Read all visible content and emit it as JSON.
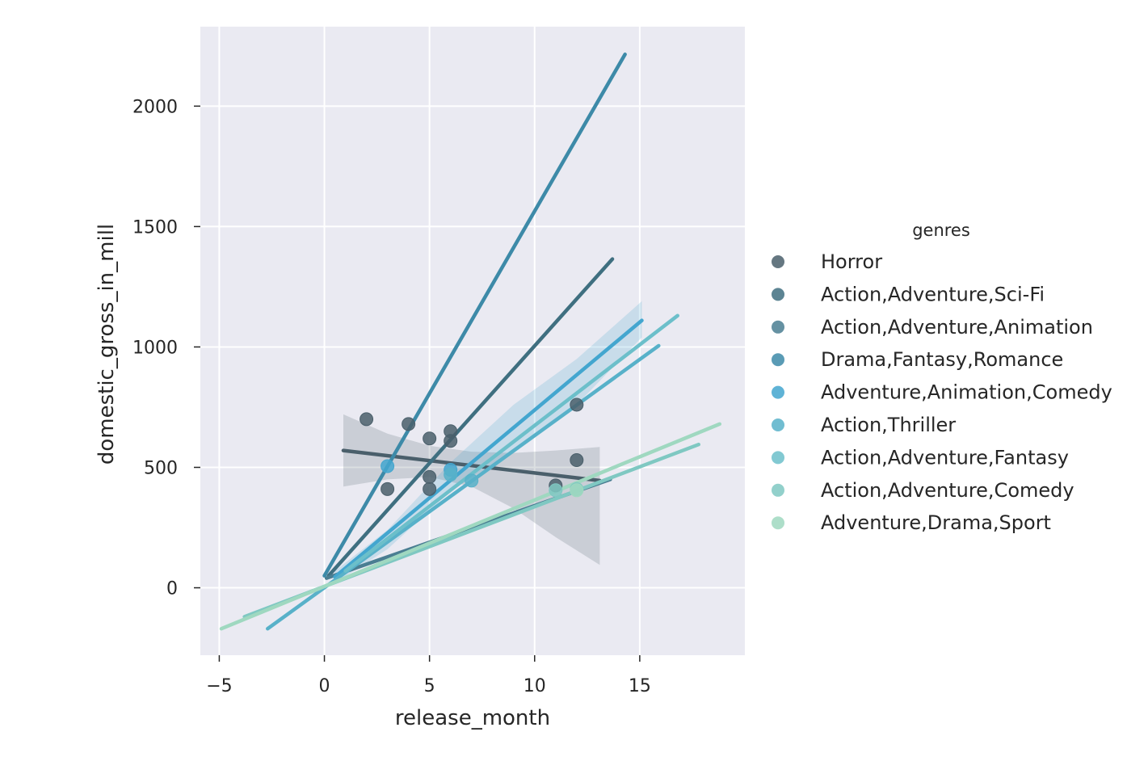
{
  "chart_data": {
    "type": "scatter",
    "title": "",
    "xlabel": "release_month",
    "ylabel": "domestic_gross_in_mill",
    "xlim": [
      -5.9,
      20
    ],
    "ylim": [
      -280,
      2330
    ],
    "xticks": [
      -5,
      0,
      5,
      10,
      15
    ],
    "xtick_labels": [
      "−5",
      "0",
      "5",
      "10",
      "15"
    ],
    "yticks": [
      0,
      500,
      1000,
      1500,
      2000
    ],
    "ytick_labels": [
      "0",
      "500",
      "1000",
      "1500",
      "2000"
    ],
    "grid": true,
    "legend": {
      "title": "genres",
      "placement": "right"
    },
    "series": [
      {
        "name": "Horror",
        "color": "#4a5f6b",
        "points": [
          [
            2,
            700
          ],
          [
            3,
            410
          ],
          [
            4,
            680
          ],
          [
            5,
            620
          ],
          [
            5,
            460
          ],
          [
            5,
            410
          ],
          [
            6,
            650
          ],
          [
            6,
            610
          ],
          [
            11,
            425
          ],
          [
            12,
            760
          ],
          [
            12,
            530
          ]
        ],
        "fit": {
          "x": [
            0.9,
            13.1
          ],
          "y": [
            570,
            445
          ]
        },
        "ci_band": {
          "x": [
            0.9,
            3,
            5,
            7,
            9,
            11,
            13.1
          ],
          "upper": [
            720,
            640,
            590,
            565,
            560,
            570,
            585
          ],
          "lower": [
            420,
            450,
            460,
            420,
            330,
            210,
            95
          ]
        }
      },
      {
        "name": "Action,Adventure,Sci-Fi",
        "color": "#3f6f80",
        "points": [],
        "fit": {
          "x": [
            0.2,
            13.7
          ],
          "y": [
            50,
            1365
          ]
        }
      },
      {
        "name": "Action,Adventure,Animation",
        "color": "#4a7e92",
        "points": [],
        "fit": {
          "x": [
            0.1,
            13.6
          ],
          "y": [
            40,
            450
          ]
        }
      },
      {
        "name": "Drama,Fantasy,Romance",
        "color": "#3d8aa8",
        "points": [],
        "fit": {
          "x": [
            0,
            14.3
          ],
          "y": [
            50,
            2215
          ]
        }
      },
      {
        "name": "Adventure,Animation,Comedy",
        "color": "#43a6cf",
        "points": [
          [
            3,
            505
          ],
          [
            6,
            490
          ]
        ],
        "fit": {
          "x": [
            0.5,
            15.1
          ],
          "y": [
            45,
            1110
          ]
        },
        "ci_band": {
          "x": [
            0.5,
            3,
            6,
            9,
            12,
            15.1
          ],
          "upper": [
            70,
            240,
            520,
            760,
            950,
            1190
          ],
          "lower": [
            20,
            160,
            400,
            570,
            760,
            1040
          ]
        }
      },
      {
        "name": "Action,Thriller",
        "color": "#58b1c9",
        "points": [
          [
            6,
            470
          ],
          [
            7,
            445
          ]
        ],
        "fit": {
          "x": [
            -2.7,
            15.9
          ],
          "y": [
            -170,
            1005
          ]
        }
      },
      {
        "name": "Action,Adventure,Fantasy",
        "color": "#6cbfca",
        "points": [],
        "fit": {
          "x": [
            1,
            16.8
          ],
          "y": [
            70,
            1130
          ]
        }
      },
      {
        "name": "Action,Adventure,Comedy",
        "color": "#7fc8c2",
        "points": [
          [
            11,
            405
          ],
          [
            12,
            410
          ]
        ],
        "fit": {
          "x": [
            -3.8,
            17.8
          ],
          "y": [
            -120,
            595
          ]
        }
      },
      {
        "name": "Adventure,Drama,Sport",
        "color": "#9fd8c0",
        "points": [
          [
            12,
            405
          ]
        ],
        "fit": {
          "x": [
            -4.9,
            18.8
          ],
          "y": [
            -170,
            680
          ]
        }
      }
    ]
  }
}
